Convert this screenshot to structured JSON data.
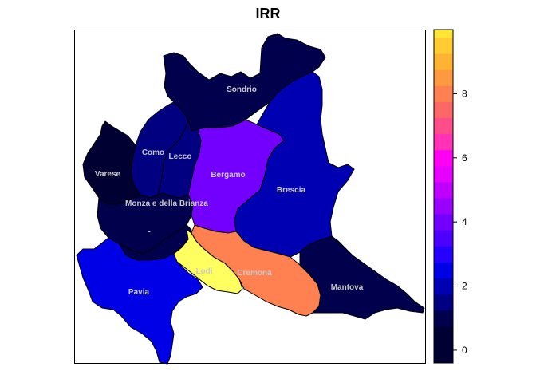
{
  "title": "IRR",
  "legend": {
    "ticks": [
      "0",
      "2",
      "4",
      "6",
      "8"
    ],
    "tick_values": [
      0,
      2,
      4,
      6,
      8
    ],
    "range": [
      -0.4,
      10
    ],
    "bins": [
      {
        "value": -0.4,
        "color": "#000033"
      },
      {
        "value": 0.25,
        "color": "#000033"
      },
      {
        "value": 0.75,
        "color": "#00004C"
      },
      {
        "value": 1.25,
        "color": "#000080"
      },
      {
        "value": 1.75,
        "color": "#0000B3"
      },
      {
        "value": 2.25,
        "color": "#0000E6"
      },
      {
        "value": 2.75,
        "color": "#2600FF"
      },
      {
        "value": 3.25,
        "color": "#4C00FF"
      },
      {
        "value": 3.75,
        "color": "#7300FF"
      },
      {
        "value": 4.25,
        "color": "#9900FF"
      },
      {
        "value": 4.75,
        "color": "#BE00FF"
      },
      {
        "value": 5.25,
        "color": "#E600FF"
      },
      {
        "value": 5.75,
        "color": "#FF00F2"
      },
      {
        "value": 6.25,
        "color": "#FF33B3"
      },
      {
        "value": 6.75,
        "color": "#FF4D8C"
      },
      {
        "value": 7.25,
        "color": "#FF6666"
      },
      {
        "value": 7.75,
        "color": "#FF8050"
      },
      {
        "value": 8.25,
        "color": "#FF9940"
      },
      {
        "value": 8.75,
        "color": "#FFB333"
      },
      {
        "value": 9.25,
        "color": "#FFCC33"
      },
      {
        "value": 9.75,
        "color": "#FFE633"
      },
      {
        "value": 10.0,
        "color": "#FFFF60"
      }
    ]
  },
  "regions": [
    {
      "name": "Sondrio",
      "fill": "#00004C"
    },
    {
      "name": "Como",
      "fill": "#000080"
    },
    {
      "name": "Lecco",
      "fill": "#000080"
    },
    {
      "name": "Varese",
      "fill": "#000033"
    },
    {
      "name": "Monza e della Brianza",
      "fill": "#00004C"
    },
    {
      "name": "-",
      "fill": "#00004C"
    },
    {
      "name": "Bergamo",
      "fill": "#7300FF"
    },
    {
      "name": "Brescia",
      "fill": "#0000B3"
    },
    {
      "name": "Pavia",
      "fill": "#0000E6"
    },
    {
      "name": "Lodi",
      "fill": "#FFFF60"
    },
    {
      "name": "Cremona",
      "fill": "#FF8050"
    },
    {
      "name": "Mantova",
      "fill": "#00004C"
    }
  ]
}
